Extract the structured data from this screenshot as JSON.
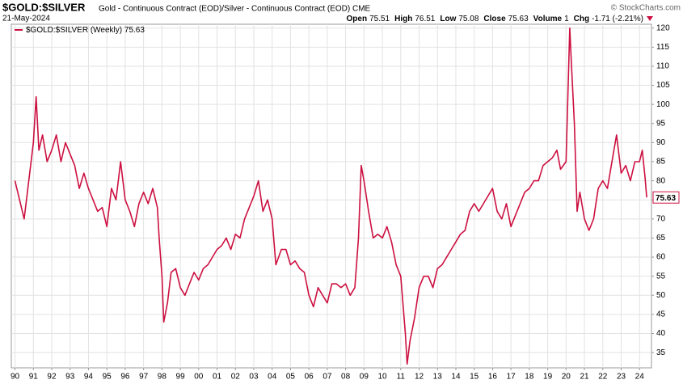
{
  "chart_data": {
    "type": "line",
    "title": "$GOLD:$SILVER",
    "subtitle": "Gold - Continuous Contract (EOD)/Silver - Continuous Contract (EOD) CME",
    "date": "21-May-2024",
    "credit": "© StockCharts.com",
    "quote": [
      {
        "label": "Open",
        "value": "75.51"
      },
      {
        "label": "High",
        "value": "76.51"
      },
      {
        "label": "Low",
        "value": "75.08"
      },
      {
        "label": "Close",
        "value": "75.63"
      },
      {
        "label": "Volume",
        "value": "1"
      },
      {
        "label": "Chg",
        "value": "-1.71 (-2.21%)"
      }
    ],
    "legend_value": "75.63",
    "last_label": "75.63",
    "x": [
      1990,
      1990.25,
      1990.5,
      1990.75,
      1991,
      1991.15,
      1991.3,
      1991.5,
      1991.75,
      1992,
      1992.25,
      1992.5,
      1992.75,
      1993,
      1993.25,
      1993.5,
      1993.75,
      1994,
      1994.25,
      1994.5,
      1994.75,
      1995,
      1995.25,
      1995.5,
      1995.75,
      1996,
      1996.25,
      1996.5,
      1996.75,
      1997,
      1997.25,
      1997.5,
      1997.75,
      1997.85,
      1998,
      1998.1,
      1998.3,
      1998.5,
      1998.75,
      1999,
      1999.25,
      1999.5,
      1999.75,
      2000,
      2000.25,
      2000.5,
      2000.75,
      2001,
      2001.25,
      2001.5,
      2001.75,
      2002,
      2002.25,
      2002.5,
      2002.75,
      2003,
      2003.25,
      2003.5,
      2003.75,
      2004,
      2004.2,
      2004.5,
      2004.75,
      2005,
      2005.25,
      2005.5,
      2005.75,
      2006,
      2006.25,
      2006.5,
      2006.75,
      2007,
      2007.25,
      2007.5,
      2007.75,
      2008,
      2008.25,
      2008.5,
      2008.7,
      2008.85,
      2009,
      2009.25,
      2009.5,
      2009.75,
      2010,
      2010.25,
      2010.5,
      2010.75,
      2011,
      2011.25,
      2011.35,
      2011.5,
      2011.75,
      2012,
      2012.25,
      2012.5,
      2012.75,
      2013,
      2013.25,
      2013.5,
      2013.75,
      2014,
      2014.25,
      2014.5,
      2014.75,
      2015,
      2015.25,
      2015.5,
      2015.75,
      2016,
      2016.25,
      2016.5,
      2016.75,
      2017,
      2017.25,
      2017.5,
      2017.75,
      2018,
      2018.25,
      2018.5,
      2018.75,
      2019,
      2019.25,
      2019.5,
      2019.7,
      2020,
      2020.2,
      2020.3,
      2020.45,
      2020.6,
      2020.75,
      2021,
      2021.25,
      2021.5,
      2021.75,
      2022,
      2022.25,
      2022.5,
      2022.75,
      2023,
      2023.25,
      2023.5,
      2023.75,
      2024,
      2024.15,
      2024.3,
      2024.39
    ],
    "series": [
      {
        "name": "$GOLD:$SILVER (Weekly)",
        "color": "#cc1040",
        "values": [
          80,
          75,
          70,
          80,
          90,
          102,
          88,
          92,
          85,
          88,
          92,
          85,
          90,
          87,
          84,
          78,
          82,
          78,
          75,
          72,
          73,
          68,
          78,
          75,
          85,
          75,
          72,
          68,
          74,
          77,
          74,
          78,
          73,
          65,
          55,
          43,
          48,
          56,
          57,
          52,
          50,
          53,
          56,
          54,
          57,
          58,
          60,
          62,
          63,
          65,
          62,
          66,
          65,
          70,
          73,
          76,
          80,
          72,
          75,
          70,
          58,
          62,
          62,
          58,
          59,
          57,
          56,
          50,
          47,
          52,
          50,
          48,
          53,
          53,
          52,
          53,
          50,
          52,
          65,
          84,
          80,
          72,
          65,
          66,
          65,
          68,
          64,
          58,
          55,
          40,
          32,
          38,
          44,
          52,
          55,
          55,
          52,
          57,
          58,
          60,
          62,
          64,
          66,
          67,
          72,
          74,
          72,
          74,
          76,
          78,
          72,
          70,
          74,
          68,
          71,
          74,
          77,
          78,
          80,
          80,
          84,
          85,
          86,
          88,
          83,
          85,
          120,
          110,
          95,
          72,
          77,
          70,
          67,
          70,
          78,
          80,
          78,
          85,
          92,
          82,
          84,
          80,
          85,
          85,
          88,
          81,
          75.63
        ]
      }
    ],
    "xlim": [
      1989.8,
      2024.65
    ],
    "ylim": [
      31,
      121
    ],
    "yticks": [
      35,
      40,
      45,
      50,
      55,
      60,
      65,
      70,
      75,
      80,
      85,
      90,
      95,
      100,
      105,
      110,
      115,
      120
    ],
    "xticks": [
      {
        "value": 1990,
        "label": "90"
      },
      {
        "value": 1991,
        "label": "91"
      },
      {
        "value": 1992,
        "label": "92"
      },
      {
        "value": 1993,
        "label": "93"
      },
      {
        "value": 1994,
        "label": "94"
      },
      {
        "value": 1995,
        "label": "95"
      },
      {
        "value": 1996,
        "label": "96"
      },
      {
        "value": 1997,
        "label": "97"
      },
      {
        "value": 1998,
        "label": "98"
      },
      {
        "value": 1999,
        "label": "99"
      },
      {
        "value": 2000,
        "label": "00"
      },
      {
        "value": 2001,
        "label": "01"
      },
      {
        "value": 2002,
        "label": "02"
      },
      {
        "value": 2003,
        "label": "03"
      },
      {
        "value": 2004,
        "label": "04"
      },
      {
        "value": 2005,
        "label": "05"
      },
      {
        "value": 2006,
        "label": "06"
      },
      {
        "value": 2007,
        "label": "07"
      },
      {
        "value": 2008,
        "label": "08"
      },
      {
        "value": 2009,
        "label": "09"
      },
      {
        "value": 2010,
        "label": "10"
      },
      {
        "value": 2011,
        "label": "11"
      },
      {
        "value": 2012,
        "label": "12"
      },
      {
        "value": 2013,
        "label": "13"
      },
      {
        "value": 2014,
        "label": "14"
      },
      {
        "value": 2015,
        "label": "15"
      },
      {
        "value": 2016,
        "label": "16"
      },
      {
        "value": 2017,
        "label": "17"
      },
      {
        "value": 2018,
        "label": "18"
      },
      {
        "value": 2019,
        "label": "19"
      },
      {
        "value": 2020,
        "label": "20"
      },
      {
        "value": 2021,
        "label": "21"
      },
      {
        "value": 2022,
        "label": "22"
      },
      {
        "value": 2023,
        "label": "23"
      },
      {
        "value": 2024,
        "label": "24"
      }
    ],
    "grid": true
  }
}
